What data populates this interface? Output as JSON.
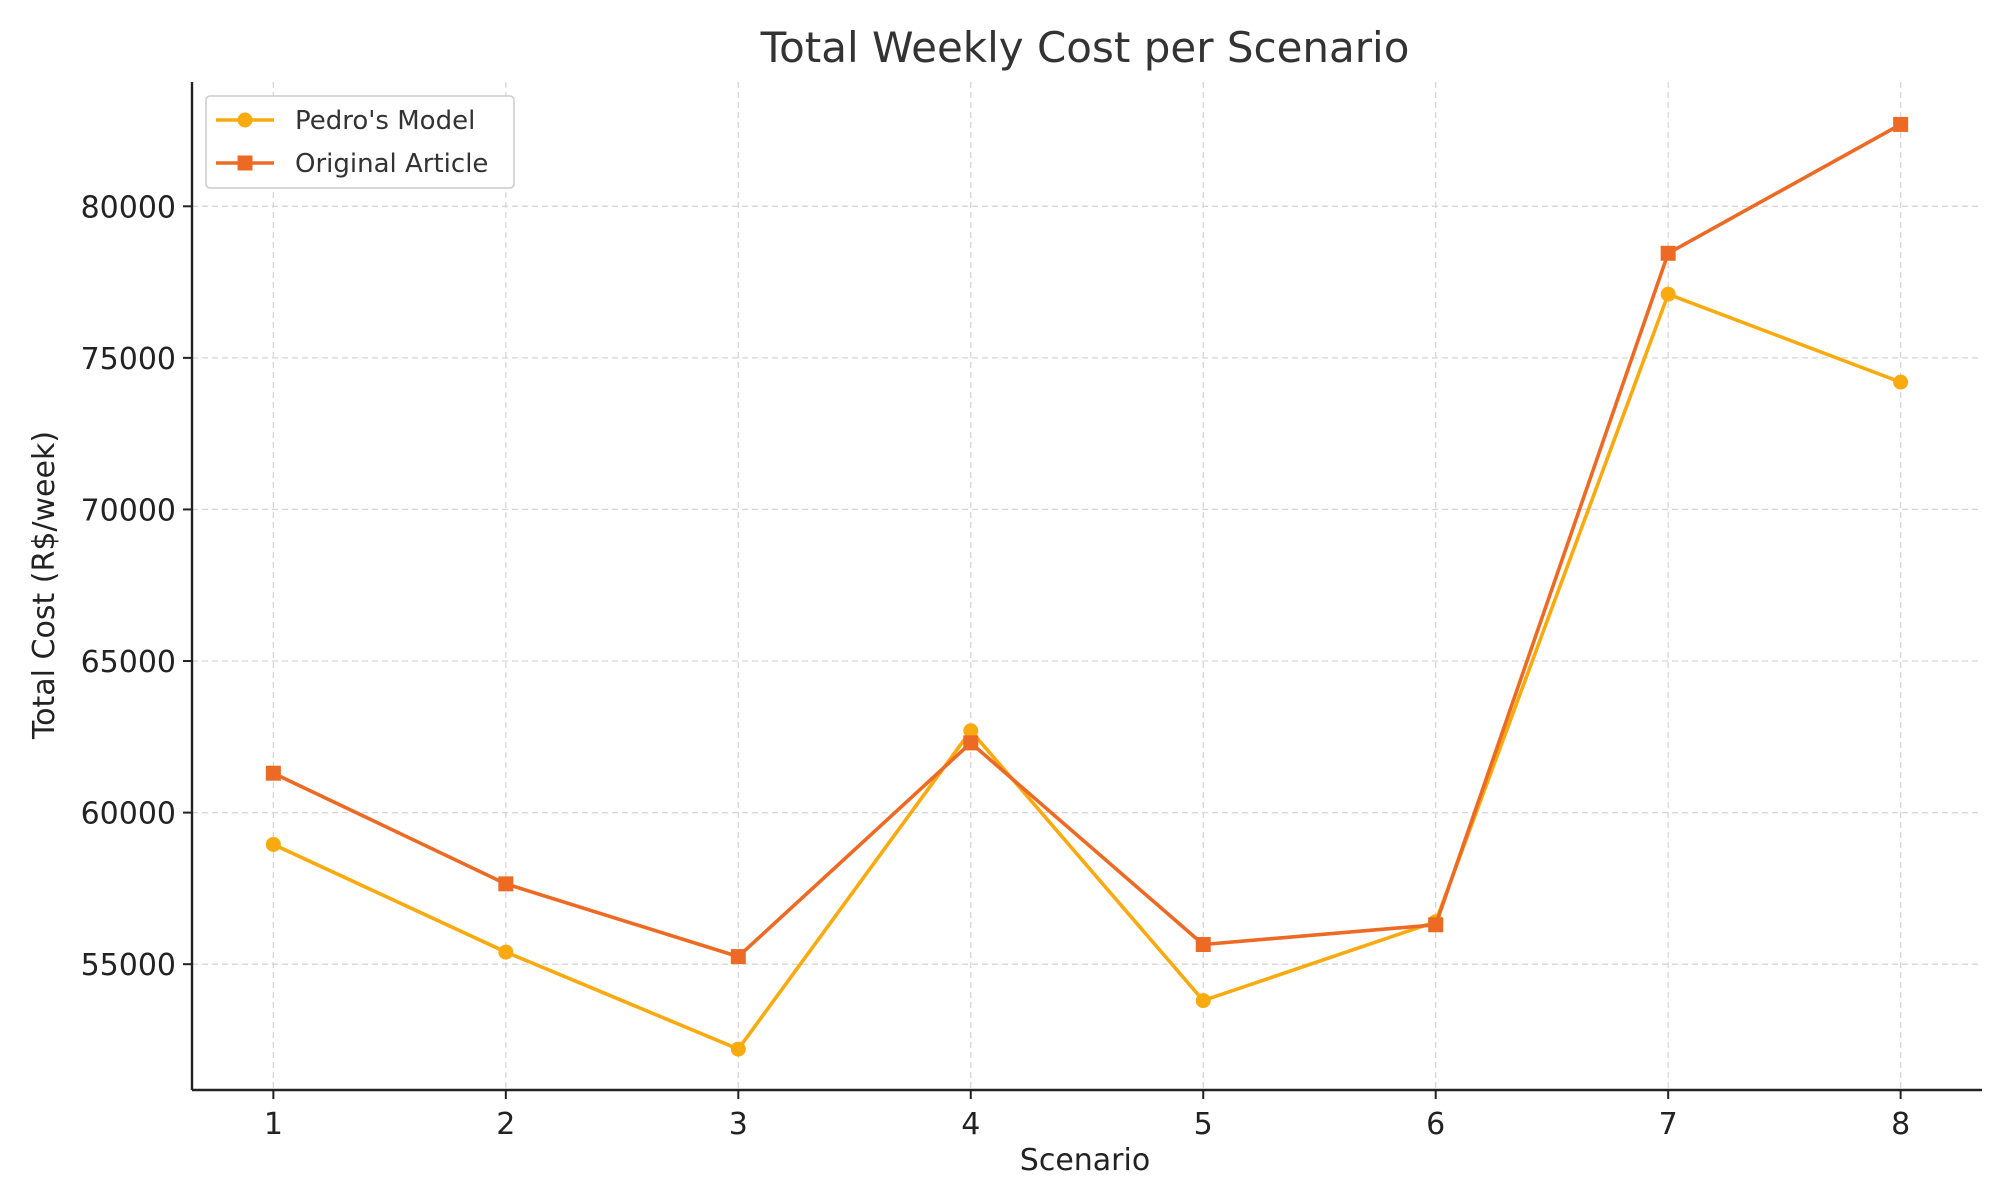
{
  "chart_data": {
    "type": "line",
    "title": "Total Weekly Cost per Scenario",
    "xlabel": "Scenario",
    "ylabel": "Total Cost (R$/week)",
    "x": [
      1,
      2,
      3,
      4,
      5,
      6,
      7,
      8
    ],
    "xlim": [
      0.65,
      8.35
    ],
    "ylim": [
      50850,
      84100
    ],
    "yticks": [
      55000,
      60000,
      65000,
      70000,
      75000,
      80000
    ],
    "grid": true,
    "legend_position": "top-left",
    "series": [
      {
        "name": "Pedro's Model",
        "marker": "circle",
        "color": "#F9AA0F",
        "values": [
          58950,
          55400,
          52200,
          62700,
          53800,
          56400,
          77100,
          74200
        ]
      },
      {
        "name": "Original Article",
        "marker": "square",
        "color": "#EC6A24",
        "values": [
          61300,
          57650,
          55250,
          62300,
          55650,
          56300,
          78450,
          82700
        ]
      }
    ]
  }
}
